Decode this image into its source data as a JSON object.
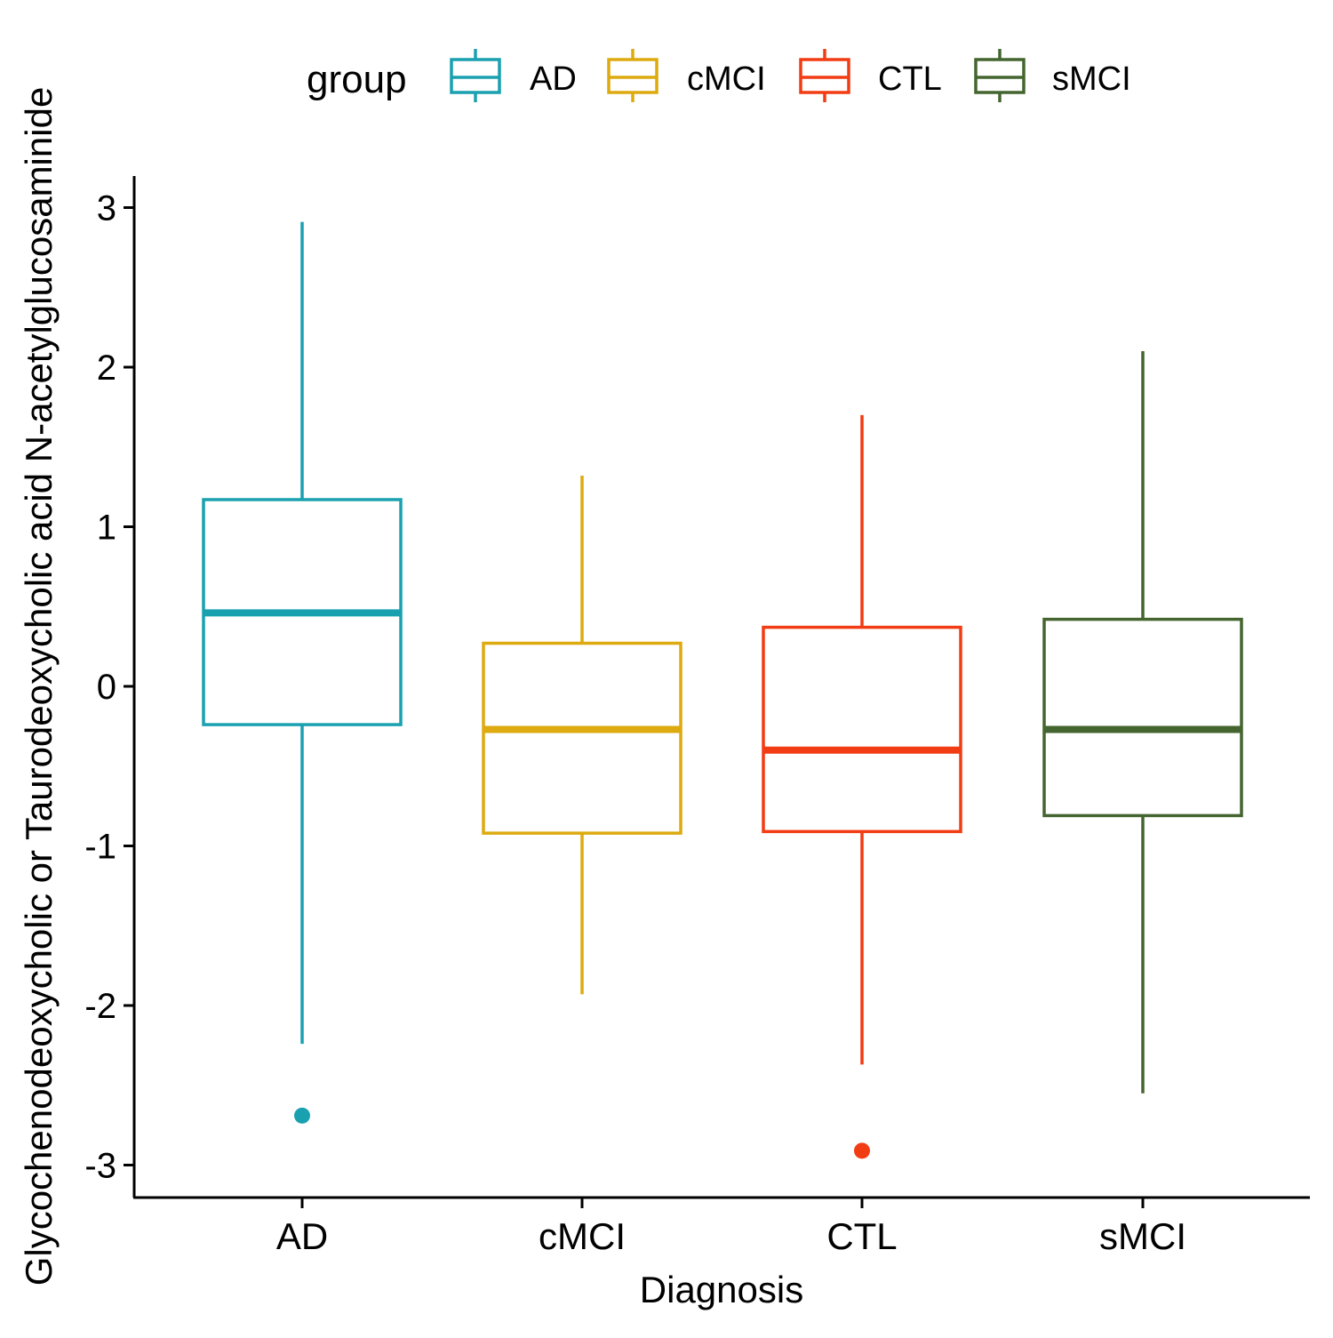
{
  "chart_data": {
    "type": "boxplot",
    "xlabel": "Diagnosis",
    "ylabel": "Glycochenodeoxycholic or Taurodeoxycholic acid N-acetylglucosaminide",
    "ylim": [
      -3.2,
      3.2
    ],
    "yticks": [
      3,
      2,
      1,
      0,
      -1,
      -2,
      -3
    ],
    "ytick_labels": [
      "3",
      "2",
      "1",
      "0",
      "-1",
      "-2",
      "-3"
    ],
    "categories": [
      "AD",
      "cMCI",
      "CTL",
      "sMCI"
    ],
    "legend": {
      "title": "group",
      "position": "top",
      "entries": [
        "AD",
        "cMCI",
        "CTL",
        "sMCI"
      ]
    },
    "colors": {
      "AD": "#1AA1B0",
      "cMCI": "#DDAA10",
      "CTL": "#F23C14",
      "sMCI": "#44652F"
    },
    "series": [
      {
        "name": "AD",
        "whisker_low": -2.24,
        "q1": -0.24,
        "median": 0.46,
        "q3": 1.17,
        "whisker_high": 2.91,
        "outliers": [
          -2.69
        ]
      },
      {
        "name": "cMCI",
        "whisker_low": -1.93,
        "q1": -0.92,
        "median": -0.27,
        "q3": 0.27,
        "whisker_high": 1.32,
        "outliers": []
      },
      {
        "name": "CTL",
        "whisker_low": -2.37,
        "q1": -0.91,
        "median": -0.4,
        "q3": 0.37,
        "whisker_high": 1.7,
        "outliers": [
          -2.91
        ]
      },
      {
        "name": "sMCI",
        "whisker_low": -2.55,
        "q1": -0.81,
        "median": -0.27,
        "q3": 0.42,
        "whisker_high": 2.1,
        "outliers": []
      }
    ],
    "grid": false
  }
}
